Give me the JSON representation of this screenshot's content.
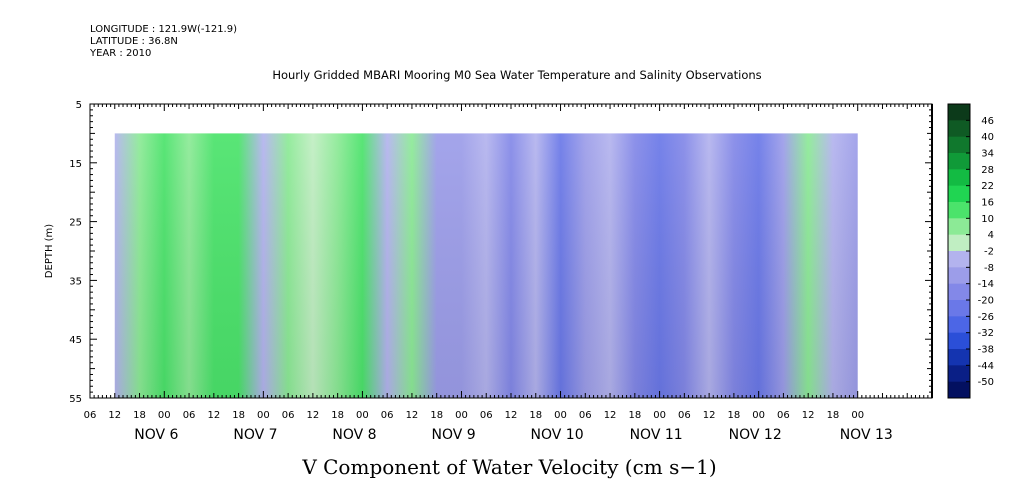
{
  "header": {
    "longitude": "LONGITUDE : 121.9W(-121.9)",
    "latitude": "LATITUDE : 36.8N",
    "year": "YEAR : 2010"
  },
  "chart_data": {
    "type": "heatmap",
    "title": "Hourly Gridded MBARI Mooring M0 Sea Water Temperature and Salinity Observations",
    "xlabel": "V Component of Water Velocity (cm s−1)",
    "ylabel": "DEPTH (m)",
    "ylim": [
      5,
      55
    ],
    "yticks": [
      5,
      15,
      25,
      35,
      45,
      55
    ],
    "x_hour_ticks": [
      "06",
      "12",
      "18",
      "00",
      "06",
      "12",
      "18",
      "00",
      "06",
      "12",
      "18",
      "00",
      "06",
      "12",
      "18",
      "00",
      "06",
      "12",
      "18",
      "00",
      "06",
      "12",
      "18",
      "00",
      "06",
      "12",
      "18",
      "00",
      "06",
      "12",
      "18",
      "00"
    ],
    "x_day_labels": [
      "NOV  6",
      "NOV  7",
      "NOV  8",
      "NOV  9",
      "NOV 10",
      "NOV 11",
      "NOV 12",
      "NOV 13"
    ],
    "data_time_range_hours_from_nov6_00": [
      -12,
      168
    ],
    "data_depth_range_m": [
      10,
      55
    ],
    "colorbar_levels": [
      46,
      40,
      34,
      28,
      22,
      16,
      10,
      4,
      -2,
      -8,
      -14,
      -20,
      -26,
      -32,
      -38,
      -44,
      -50
    ],
    "colorbar_colors": [
      "#0c3a1a",
      "#0f5a24",
      "#10782d",
      "#109a38",
      "#13bb43",
      "#20d552",
      "#4be36b",
      "#8cea96",
      "#c0eec2",
      "#b3b3ee",
      "#9c9de9",
      "#8388e8",
      "#6a78e8",
      "#4c66e6",
      "#2b4fd8",
      "#1434b0",
      "#0a1f86",
      "#031060"
    ],
    "v_velocity_pattern": [
      {
        "time_hours": -12,
        "v": -3
      },
      {
        "time_hours": -6,
        "v": 8
      },
      {
        "time_hours": 0,
        "v": 15
      },
      {
        "time_hours": 6,
        "v": 8
      },
      {
        "time_hours": 12,
        "v": 14
      },
      {
        "time_hours": 18,
        "v": 10
      },
      {
        "time_hours": 24,
        "v": -3
      },
      {
        "time_hours": 30,
        "v": 6
      },
      {
        "time_hours": 36,
        "v": 2
      },
      {
        "time_hours": 42,
        "v": 4
      },
      {
        "time_hours": 48,
        "v": 12
      },
      {
        "time_hours": 54,
        "v": -6
      },
      {
        "time_hours": 60,
        "v": 4
      },
      {
        "time_hours": 66,
        "v": -14
      },
      {
        "time_hours": 72,
        "v": -12
      },
      {
        "time_hours": 78,
        "v": -6
      },
      {
        "time_hours": 84,
        "v": -18
      },
      {
        "time_hours": 90,
        "v": -8
      },
      {
        "time_hours": 96,
        "v": -22
      },
      {
        "time_hours": 102,
        "v": -12
      },
      {
        "time_hours": 108,
        "v": -4
      },
      {
        "time_hours": 114,
        "v": -18
      },
      {
        "time_hours": 120,
        "v": -26
      },
      {
        "time_hours": 126,
        "v": -16
      },
      {
        "time_hours": 132,
        "v": -4
      },
      {
        "time_hours": 138,
        "v": -16
      },
      {
        "time_hours": 144,
        "v": -22
      },
      {
        "time_hours": 150,
        "v": -10
      },
      {
        "time_hours": 156,
        "v": 4
      },
      {
        "time_hours": 162,
        "v": -8
      },
      {
        "time_hours": 168,
        "v": -14
      }
    ]
  }
}
